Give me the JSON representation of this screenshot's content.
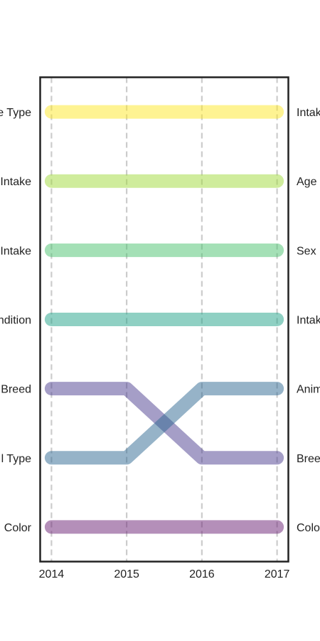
{
  "chart_data": {
    "type": "line",
    "chart_style": "bump",
    "title": "",
    "xlabel": "",
    "ylabel": "",
    "x": [
      2014,
      2015,
      2016,
      2017
    ],
    "xlim": [
      2013.85,
      2017.15
    ],
    "ylim": [
      0.5,
      7.5
    ],
    "rank_direction": "rank 1 at top",
    "grid": "vertical dashed",
    "left_labels": [
      "e Type",
      "Intake",
      "Intake",
      "ndition",
      "Breed",
      "l Type",
      "Color"
    ],
    "right_labels": [
      "Intak",
      "Age",
      "Sex",
      "Intak",
      "Anim",
      "Bree",
      "Colo"
    ],
    "series": [
      {
        "values": [
          1,
          1,
          1,
          1
        ],
        "color": "#fde725"
      },
      {
        "values": [
          2,
          2,
          2,
          2
        ],
        "color": "#a0da39"
      },
      {
        "values": [
          3,
          3,
          3,
          3
        ],
        "color": "#4ac16d"
      },
      {
        "values": [
          4,
          4,
          4,
          4
        ],
        "color": "#1fa187"
      },
      {
        "values": [
          5,
          5,
          6,
          6
        ],
        "color": "#4b3d8f"
      },
      {
        "values": [
          6,
          6,
          5,
          5
        ],
        "color": "#2e6792"
      },
      {
        "values": [
          7,
          7,
          7,
          7
        ],
        "color": "#6a1f74"
      }
    ]
  }
}
